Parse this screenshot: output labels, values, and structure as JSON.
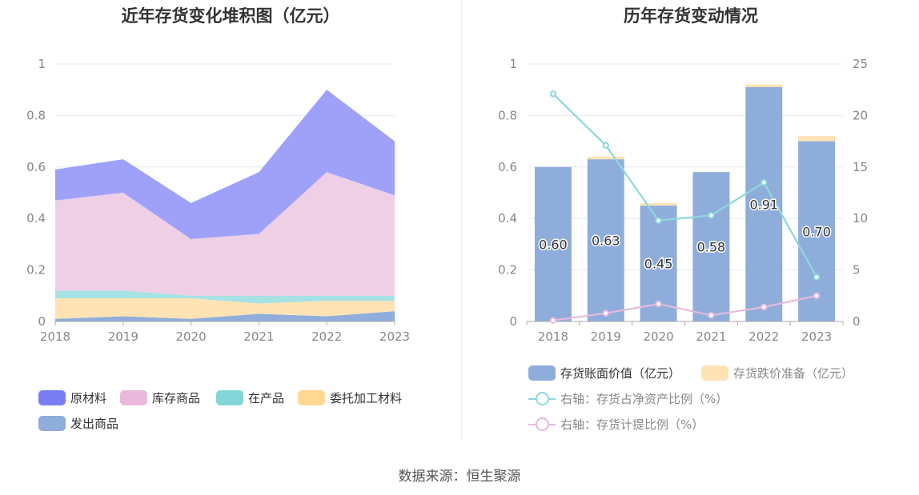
{
  "source": "数据来源：恒生聚源",
  "chart_data": [
    {
      "type": "area",
      "stacked": true,
      "title": "近年存货变化堆积图（亿元）",
      "categories": [
        "2018",
        "2019",
        "2020",
        "2021",
        "2022",
        "2023"
      ],
      "ylim": [
        0,
        1
      ],
      "yticks": [
        "0",
        "0.2",
        "0.4",
        "0.6",
        "0.8",
        "1"
      ],
      "grid": true,
      "legend_position": "bottom",
      "series": [
        {
          "name": "发出商品",
          "color": "#90ADDB",
          "values": [
            0.01,
            0.02,
            0.01,
            0.03,
            0.02,
            0.04
          ]
        },
        {
          "name": "委托加工材料",
          "color": "#FFE3B5",
          "values": [
            0.08,
            0.07,
            0.08,
            0.04,
            0.06,
            0.04
          ]
        },
        {
          "name": "在产品",
          "color": "#A6E1E4",
          "values": [
            0.03,
            0.03,
            0.01,
            0.03,
            0.02,
            0.02
          ]
        },
        {
          "name": "库存商品",
          "color": "#EFCFE6",
          "values": [
            0.35,
            0.38,
            0.22,
            0.24,
            0.48,
            0.39
          ]
        },
        {
          "name": "原材料",
          "color": "#9FA1F9",
          "values": [
            0.12,
            0.13,
            0.14,
            0.24,
            0.32,
            0.21
          ]
        }
      ],
      "legend": [
        {
          "name": "原材料",
          "color": "#7B7DF5"
        },
        {
          "name": "库存商品",
          "color": "#EAB8DC"
        },
        {
          "name": "在产品",
          "color": "#84D5D9"
        },
        {
          "name": "委托加工材料",
          "color": "#FFD892"
        },
        {
          "name": "发出商品",
          "color": "#8FADDB"
        }
      ]
    },
    {
      "type": "bar",
      "stacked": true,
      "title": "历年存货变动情况",
      "categories": [
        "2018",
        "2019",
        "2020",
        "2021",
        "2022",
        "2023"
      ],
      "ylim": [
        0,
        1
      ],
      "yticks": [
        "0",
        "0.2",
        "0.4",
        "0.6",
        "0.8",
        "1"
      ],
      "y2lim": [
        0,
        25
      ],
      "y2ticks": [
        "0",
        "5",
        "10",
        "15",
        "20",
        "25"
      ],
      "grid": true,
      "legend_position": "bottom",
      "series": [
        {
          "name": "存货账面价值（亿元）",
          "color": "#8FADDB",
          "values": [
            0.6,
            0.63,
            0.45,
            0.58,
            0.91,
            0.7
          ],
          "labels": [
            "0.60",
            "0.63",
            "0.45",
            "0.58",
            "0.91",
            "0.70"
          ]
        },
        {
          "name": "存货跌价准备（亿元）",
          "color": "#FFE3B5",
          "values": [
            0.0,
            0.01,
            0.01,
            0.0,
            0.01,
            0.02
          ]
        }
      ],
      "lines": [
        {
          "name": "右轴：存货占净资产比例（%）",
          "color": "#8ED8DC",
          "values": [
            22.1,
            17.1,
            9.8,
            10.3,
            13.5,
            4.3
          ]
        },
        {
          "name": "右轴：存货计提比例（%）",
          "color": "#E8B9DD",
          "values": [
            0.1,
            0.8,
            1.7,
            0.6,
            1.4,
            2.5
          ]
        }
      ]
    }
  ]
}
